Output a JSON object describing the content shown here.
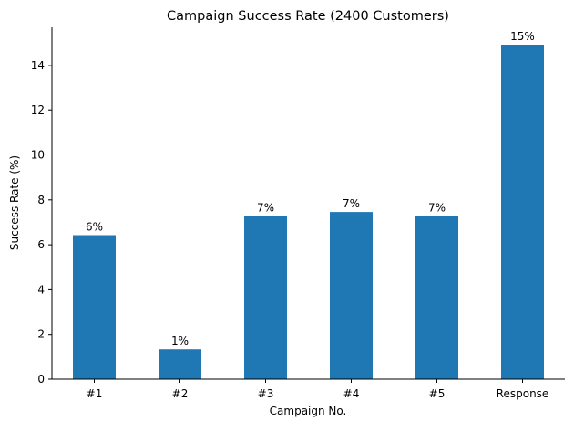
{
  "chart_data": {
    "type": "bar",
    "title": "Campaign Success Rate (2400 Customers)",
    "xlabel": "Campaign No.",
    "ylabel": "Success Rate (%)",
    "categories": [
      "#1",
      "#2",
      "#3",
      "#4",
      "#5",
      "Response"
    ],
    "values": [
      6.43,
      1.33,
      7.29,
      7.46,
      7.29,
      14.92
    ],
    "data_labels": [
      "6%",
      "1%",
      "7%",
      "7%",
      "7%",
      "15%"
    ],
    "ylim": [
      0,
      15.7
    ],
    "yticks": [
      0,
      2,
      4,
      6,
      8,
      10,
      12,
      14
    ],
    "bar_color": "#1f77b4",
    "grid": false
  }
}
